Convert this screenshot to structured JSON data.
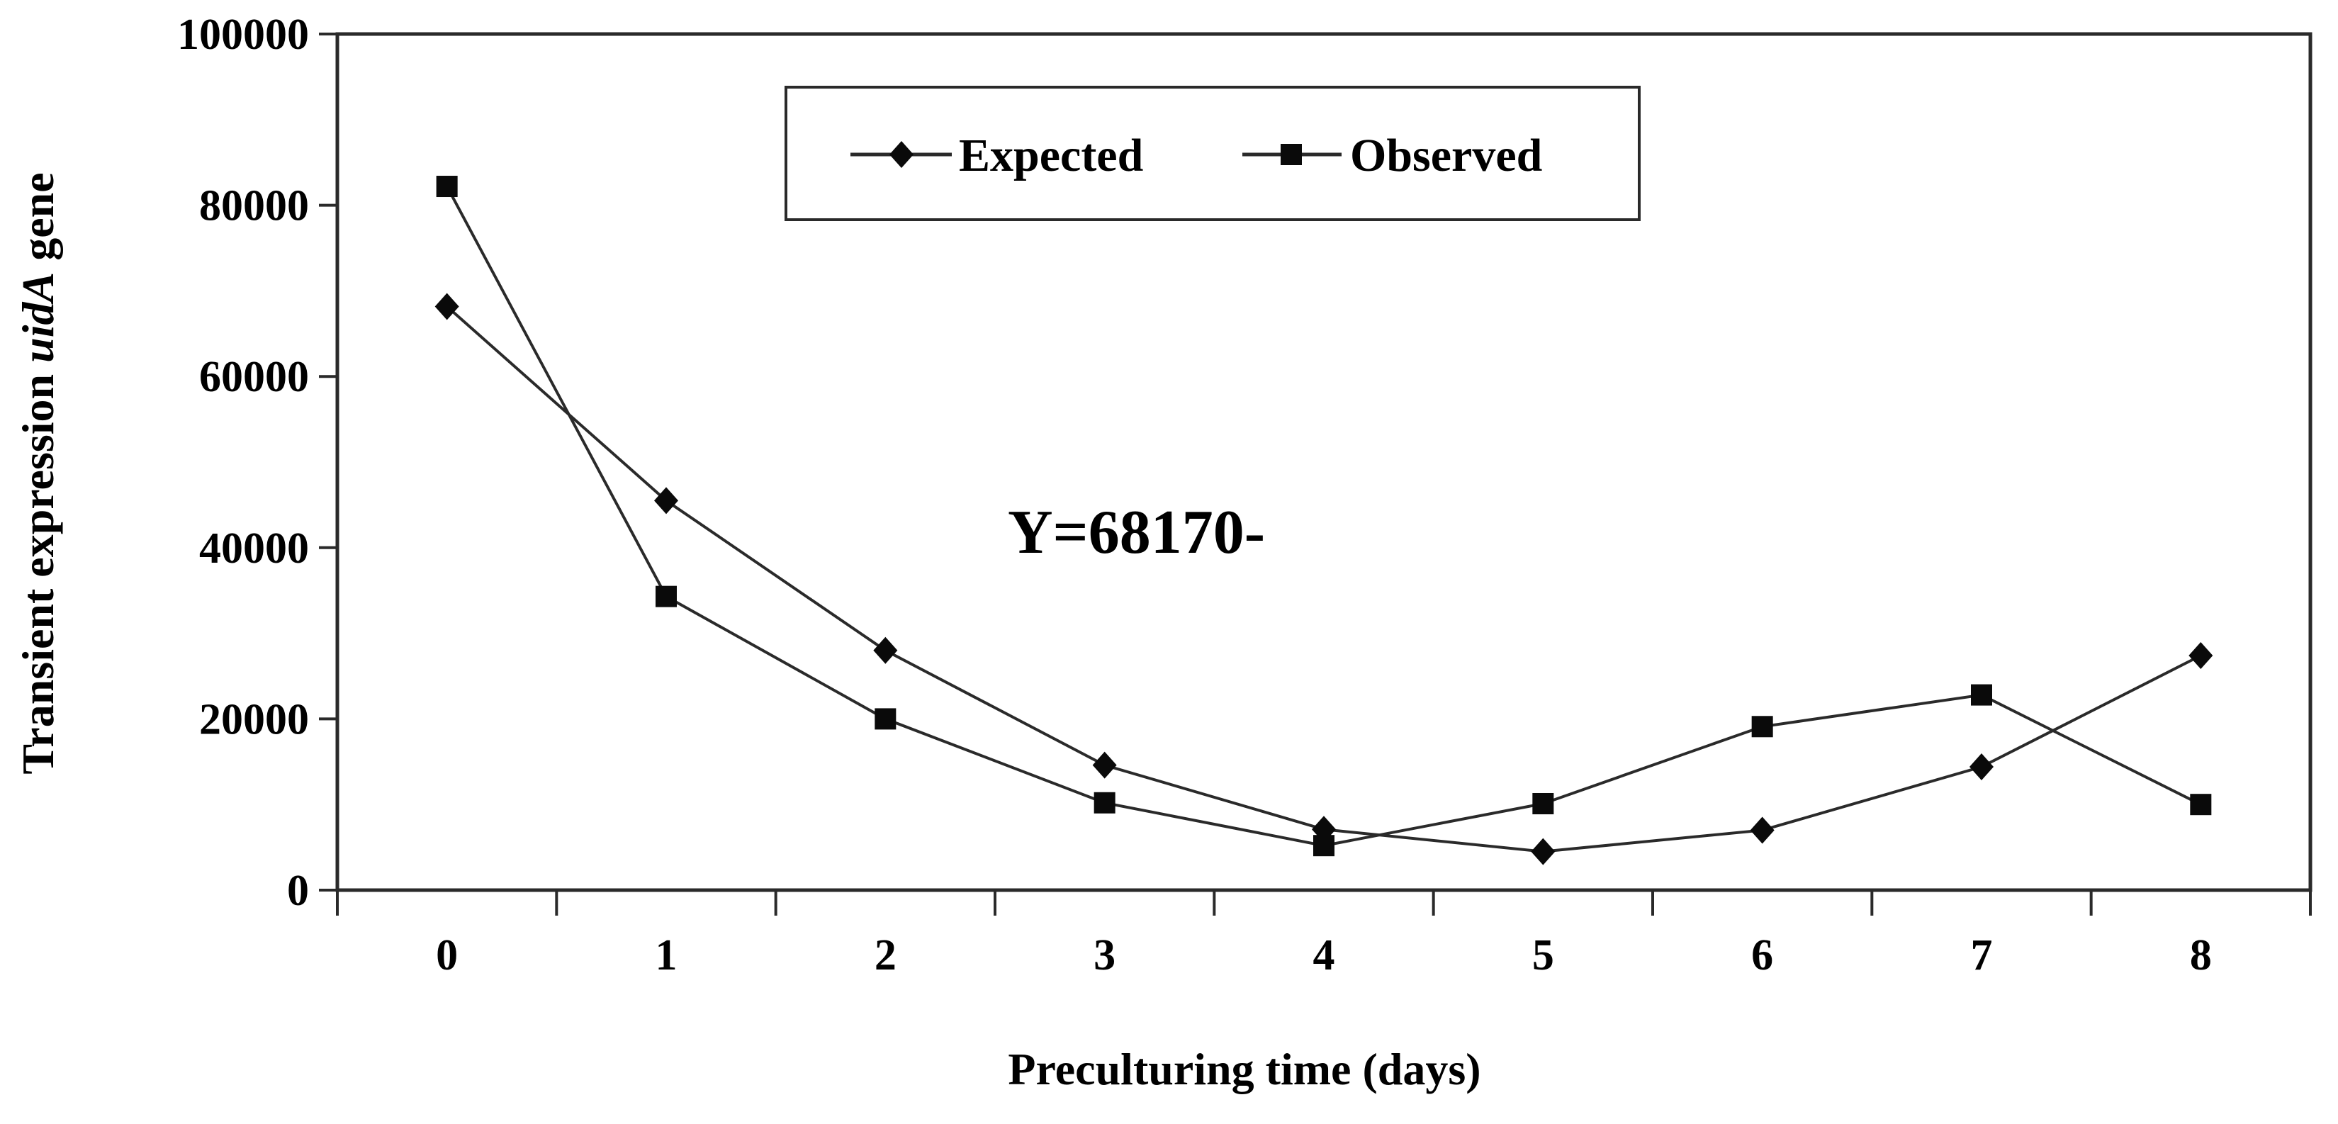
{
  "figure": {
    "background": "#ffffff",
    "line_color": "#2a2a2a",
    "marker_color": "#0a0a0a",
    "text_color": "#000000",
    "border_color": "#2a2a2a"
  },
  "chart_data": {
    "type": "line",
    "x": [
      0,
      1,
      2,
      3,
      4,
      5,
      6,
      7,
      8
    ],
    "x_tick_labels": [
      "0",
      "1",
      "2",
      "3",
      "4",
      "5",
      "6",
      "7",
      "8"
    ],
    "y_tick_labels": [
      "0",
      "20000",
      "40000",
      "60000",
      "80000",
      "100000"
    ],
    "yticks": [
      0,
      20000,
      40000,
      60000,
      80000,
      100000
    ],
    "ylim": [
      0,
      100000
    ],
    "xlabel": "Preculturing time (days)",
    "ylabel_prefix": "Transient expression ",
    "ylabel_italic": "uidA",
    "ylabel_suffix": " gene",
    "annotation": "Y=68170-",
    "grid": false,
    "legend_position": "top-center-inside",
    "series": [
      {
        "name": "Expected",
        "marker": "diamond",
        "values": [
          68170,
          45500,
          28000,
          14600,
          7100,
          4500,
          7000,
          14400,
          27400
        ]
      },
      {
        "name": "Observed",
        "marker": "square",
        "values": [
          82200,
          34300,
          20000,
          10200,
          5200,
          10100,
          19100,
          22800,
          10000
        ]
      }
    ]
  }
}
